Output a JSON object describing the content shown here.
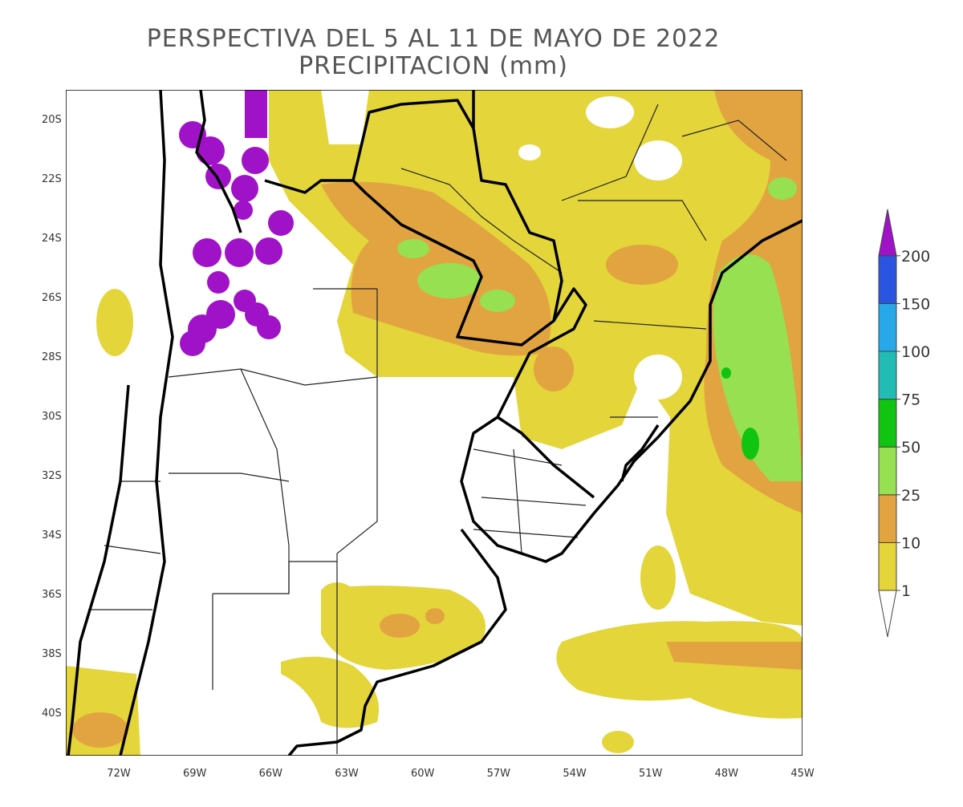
{
  "title": [
    "PERSPECTIVA DEL 5 AL 11 DE MAYO DE 2022",
    "PRECIPITACION (mm)"
  ],
  "lat_labels": [
    "20S",
    "22S",
    "24S",
    "26S",
    "28S",
    "30S",
    "32S",
    "34S",
    "36S",
    "38S",
    "40S"
  ],
  "lon_labels": [
    "72W",
    "69W",
    "66W",
    "63W",
    "60W",
    "57W",
    "54W",
    "51W",
    "48W",
    "45W"
  ],
  "legend": {
    "levels": [
      1,
      10,
      25,
      50,
      75,
      100,
      150,
      200
    ],
    "colors": [
      "#ffffff",
      "#e3d53a",
      "#e2a440",
      "#96e052",
      "#12c412",
      "#22bcb4",
      "#27a8e8",
      "#2a55e0",
      "#a012c8"
    ]
  }
}
